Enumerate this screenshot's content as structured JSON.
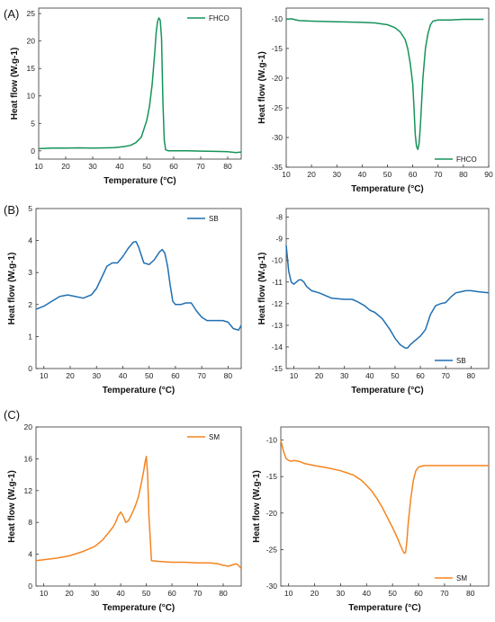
{
  "panel_labels": [
    "(A)",
    "(B)",
    "(C)"
  ],
  "chart_data": [
    {
      "type": "line",
      "panel": "(A)",
      "color": "#16935a",
      "xlabel": "Temperature (°C)",
      "ylabel": "Heat flow (W.g-1)",
      "xlim": [
        10,
        85
      ],
      "ylim": [
        -1.5,
        26
      ],
      "xticks": [
        10,
        20,
        30,
        40,
        50,
        60,
        70,
        80
      ],
      "yticks": [
        0,
        5,
        10,
        15,
        20,
        25
      ],
      "legend_position": "top-right",
      "series": [
        {
          "name": "FHCO",
          "x": [
            10,
            15,
            20,
            25,
            30,
            35,
            38,
            40,
            42,
            44,
            46,
            48,
            50,
            51,
            52,
            53,
            53.5,
            54,
            54.5,
            55,
            55.5,
            56,
            56.5,
            57,
            58,
            60,
            65,
            70,
            75,
            80,
            83,
            85
          ],
          "y": [
            0.4,
            0.5,
            0.5,
            0.55,
            0.5,
            0.55,
            0.6,
            0.7,
            0.8,
            1.0,
            1.5,
            2.5,
            5.5,
            8.0,
            12.0,
            18.0,
            21.5,
            23.5,
            24.2,
            23.8,
            20.5,
            9.0,
            2.0,
            0.2,
            0.0,
            0.0,
            0.0,
            -0.05,
            -0.1,
            -0.15,
            -0.3,
            -0.2
          ]
        }
      ]
    },
    {
      "type": "line",
      "panel": "(A)",
      "color": "#16935a",
      "xlabel": "Temperature (°C)",
      "ylabel": "Heat flow (W.g-1)",
      "xlim": [
        10,
        90
      ],
      "ylim": [
        -35,
        -8.2
      ],
      "xticks": [
        10,
        20,
        30,
        40,
        50,
        60,
        70,
        80,
        90
      ],
      "yticks": [
        -10,
        -15,
        -20,
        -25,
        -30,
        -35
      ],
      "legend_position": "bottom-right",
      "series": [
        {
          "name": "FHCO",
          "x": [
            10,
            12,
            15,
            20,
            30,
            40,
            45,
            50,
            53,
            55,
            57,
            58,
            59,
            60,
            60.5,
            61,
            61.5,
            62,
            62.5,
            63,
            63.5,
            64,
            65,
            66,
            67,
            68,
            70,
            75,
            80,
            88
          ],
          "y": [
            -10.1,
            -10.0,
            -10.3,
            -10.4,
            -10.5,
            -10.6,
            -10.7,
            -11.0,
            -11.5,
            -12.2,
            -13.5,
            -15.0,
            -17.5,
            -21.0,
            -25.0,
            -29.5,
            -31.5,
            -32.0,
            -31.0,
            -28.0,
            -24.0,
            -20.0,
            -15.0,
            -12.5,
            -11.0,
            -10.4,
            -10.2,
            -10.2,
            -10.1,
            -10.1
          ]
        }
      ]
    },
    {
      "type": "line",
      "panel": "(B)",
      "color": "#1f6fb2",
      "xlabel": "Temperature (°C)",
      "ylabel": "Heat flow (W.g-1)",
      "xlim": [
        7,
        85
      ],
      "ylim": [
        0,
        5
      ],
      "xticks": [
        10,
        20,
        30,
        40,
        50,
        60,
        70,
        80
      ],
      "yticks": [
        0,
        1,
        2,
        3,
        4,
        5
      ],
      "legend_position": "top-right",
      "series": [
        {
          "name": "SB",
          "x": [
            7,
            10,
            13,
            16,
            19,
            22,
            25,
            28,
            30,
            32,
            34,
            36,
            38,
            40,
            42,
            44,
            45,
            46,
            47,
            48,
            50,
            52,
            54,
            55,
            56,
            57,
            58,
            59,
            60,
            62,
            64,
            66,
            68,
            70,
            72,
            75,
            78,
            80,
            82,
            84,
            85
          ],
          "y": [
            1.85,
            1.95,
            2.1,
            2.25,
            2.3,
            2.25,
            2.2,
            2.3,
            2.5,
            2.85,
            3.2,
            3.3,
            3.3,
            3.5,
            3.75,
            3.95,
            3.97,
            3.8,
            3.55,
            3.3,
            3.25,
            3.4,
            3.65,
            3.72,
            3.6,
            3.2,
            2.6,
            2.1,
            2.0,
            2.0,
            2.05,
            2.05,
            1.8,
            1.6,
            1.5,
            1.5,
            1.5,
            1.45,
            1.25,
            1.2,
            1.35
          ]
        }
      ]
    },
    {
      "type": "line",
      "panel": "(B)",
      "color": "#1f6fb2",
      "xlabel": "Temperature (°C)",
      "ylabel": "Heat flow (W.g-1)",
      "xlim": [
        7,
        87
      ],
      "ylim": [
        -15,
        -7.6
      ],
      "xticks": [
        10,
        20,
        30,
        40,
        50,
        60,
        70,
        80
      ],
      "yticks": [
        -8,
        -9,
        -10,
        -11,
        -12,
        -13,
        -14,
        -15
      ],
      "legend_position": "bottom-right",
      "series": [
        {
          "name": "SB",
          "x": [
            7,
            8,
            9,
            10,
            11,
            12,
            13,
            14,
            15,
            17,
            20,
            25,
            30,
            33,
            35,
            38,
            40,
            42,
            45,
            48,
            50,
            52,
            54,
            55,
            56,
            58,
            60,
            62,
            64,
            66,
            68,
            70,
            72,
            74,
            76,
            78,
            80,
            83,
            87
          ],
          "y": [
            -9.3,
            -10.5,
            -11.0,
            -11.1,
            -11.0,
            -10.9,
            -10.9,
            -11.0,
            -11.2,
            -11.4,
            -11.5,
            -11.75,
            -11.8,
            -11.8,
            -11.9,
            -12.1,
            -12.3,
            -12.4,
            -12.7,
            -13.2,
            -13.6,
            -13.9,
            -14.05,
            -14.05,
            -13.9,
            -13.7,
            -13.5,
            -13.2,
            -12.5,
            -12.1,
            -12.0,
            -11.95,
            -11.7,
            -11.5,
            -11.45,
            -11.4,
            -11.4,
            -11.45,
            -11.5
          ]
        }
      ]
    },
    {
      "type": "line",
      "panel": "(C)",
      "color": "#f5841f",
      "xlabel": "Temperature (°C)",
      "ylabel": "Heat flow (W.g-1)",
      "xlim": [
        7,
        87
      ],
      "ylim": [
        0,
        20
      ],
      "xticks": [
        10,
        20,
        30,
        40,
        50,
        60,
        70,
        80
      ],
      "yticks": [
        0,
        4,
        8,
        12,
        16,
        20
      ],
      "legend_position": "top-right",
      "series": [
        {
          "name": "SM",
          "x": [
            7,
            10,
            15,
            20,
            25,
            30,
            33,
            35,
            37,
            38,
            39,
            40,
            41,
            42,
            43,
            44,
            45,
            46,
            47,
            48,
            49,
            49.5,
            50,
            50.5,
            51,
            52,
            55,
            60,
            65,
            70,
            75,
            78,
            80,
            82,
            83,
            84,
            85,
            86,
            87
          ],
          "y": [
            3.2,
            3.3,
            3.5,
            3.8,
            4.3,
            5.0,
            5.8,
            6.6,
            7.4,
            8.0,
            8.8,
            9.3,
            8.8,
            8.0,
            8.2,
            8.8,
            9.5,
            10.3,
            11.3,
            12.8,
            14.5,
            15.5,
            16.3,
            14.0,
            9.0,
            3.2,
            3.1,
            3.0,
            3.0,
            2.9,
            2.9,
            2.8,
            2.6,
            2.5,
            2.6,
            2.7,
            2.8,
            2.6,
            2.2
          ]
        }
      ]
    },
    {
      "type": "line",
      "panel": "(C)",
      "color": "#f5841f",
      "xlabel": "Temperature (°C)",
      "ylabel": "Heat flow (W.g-1)",
      "xlim": [
        7,
        87
      ],
      "ylim": [
        -30,
        -8.2
      ],
      "xticks": [
        10,
        20,
        30,
        40,
        50,
        60,
        70,
        80
      ],
      "yticks": [
        -10,
        -15,
        -20,
        -25,
        -30
      ],
      "legend_position": "bottom-right",
      "series": [
        {
          "name": "SM",
          "x": [
            7,
            8,
            9,
            10,
            11,
            12,
            14,
            16,
            20,
            25,
            30,
            35,
            38,
            40,
            42,
            44,
            46,
            48,
            50,
            52,
            53,
            54,
            54.5,
            55,
            55.5,
            56,
            57,
            58,
            59,
            60,
            62,
            65,
            70,
            75,
            80,
            87
          ],
          "y": [
            -10.0,
            -11.5,
            -12.5,
            -12.8,
            -12.9,
            -12.8,
            -12.9,
            -13.2,
            -13.5,
            -13.8,
            -14.2,
            -14.8,
            -15.5,
            -16.2,
            -17.0,
            -18.0,
            -19.2,
            -20.6,
            -22.0,
            -23.5,
            -24.4,
            -25.2,
            -25.5,
            -25.4,
            -24.0,
            -21.5,
            -18.0,
            -15.5,
            -14.2,
            -13.7,
            -13.5,
            -13.5,
            -13.5,
            -13.5,
            -13.5,
            -13.5
          ]
        }
      ]
    }
  ]
}
